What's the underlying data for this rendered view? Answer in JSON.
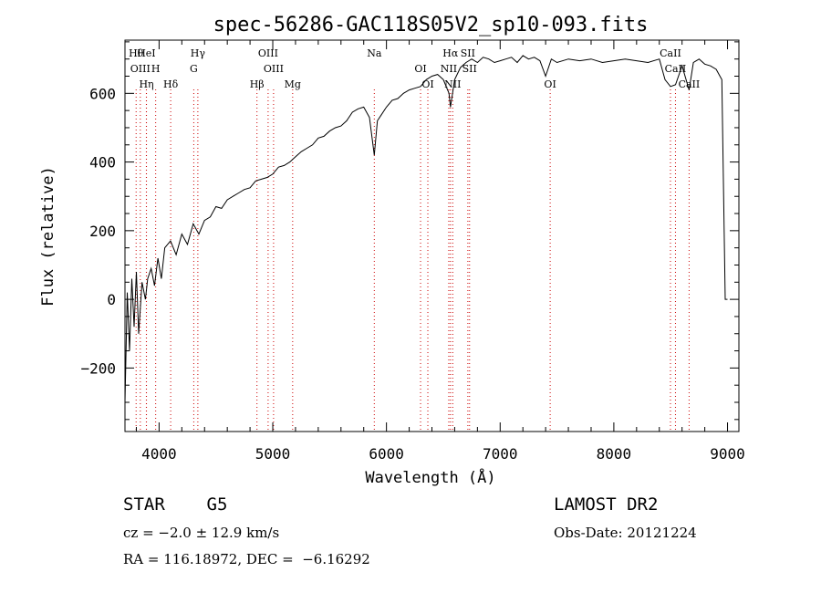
{
  "chart_data": {
    "type": "line",
    "title": "spec-56286-GAC118S05V2_sp10-093.fits",
    "xlabel": "Wavelength (Å)",
    "ylabel": "Flux (relative)",
    "xlim": [
      3700,
      9100
    ],
    "ylim": [
      -385,
      755
    ],
    "x_ticks": [
      4000,
      5000,
      6000,
      7000,
      8000,
      9000
    ],
    "y_ticks": [
      -200,
      0,
      200,
      400,
      600
    ],
    "x_tick_labels": [
      "4000",
      "5000",
      "6000",
      "7000",
      "8000",
      "9000"
    ],
    "y_tick_labels": [
      "−200",
      "0",
      "200",
      "400",
      "600"
    ],
    "grid": false,
    "series": [
      {
        "color": "#000000",
        "x": [
          3700,
          3720,
          3740,
          3760,
          3780,
          3800,
          3820,
          3850,
          3880,
          3900,
          3930,
          3960,
          3990,
          4020,
          4050,
          4100,
          4150,
          4200,
          4250,
          4300,
          4350,
          4400,
          4450,
          4500,
          4550,
          4600,
          4650,
          4700,
          4750,
          4800,
          4850,
          4900,
          4950,
          5000,
          5050,
          5100,
          5150,
          5200,
          5250,
          5300,
          5350,
          5400,
          5450,
          5500,
          5550,
          5600,
          5650,
          5700,
          5750,
          5800,
          5850,
          5893,
          5920,
          5950,
          6000,
          6050,
          6100,
          6150,
          6200,
          6250,
          6300,
          6350,
          6400,
          6450,
          6500,
          6550,
          6563,
          6600,
          6650,
          6700,
          6750,
          6800,
          6850,
          6900,
          6950,
          7000,
          7050,
          7100,
          7150,
          7200,
          7250,
          7300,
          7350,
          7400,
          7450,
          7500,
          7600,
          7700,
          7800,
          7900,
          8000,
          8100,
          8200,
          8300,
          8400,
          8450,
          8498,
          8542,
          8600,
          8662,
          8700,
          8750,
          8800,
          8850,
          8900,
          8950,
          8980,
          9000
        ],
        "y": [
          -300,
          20,
          -150,
          60,
          -80,
          80,
          -100,
          50,
          0,
          60,
          90,
          40,
          120,
          60,
          150,
          170,
          130,
          190,
          160,
          220,
          190,
          230,
          240,
          270,
          265,
          290,
          300,
          310,
          320,
          325,
          345,
          350,
          355,
          365,
          385,
          390,
          400,
          415,
          430,
          440,
          450,
          470,
          475,
          490,
          500,
          505,
          520,
          545,
          555,
          560,
          530,
          420,
          520,
          535,
          560,
          580,
          585,
          600,
          610,
          615,
          620,
          640,
          650,
          655,
          640,
          600,
          560,
          640,
          675,
          690,
          700,
          690,
          705,
          700,
          690,
          695,
          700,
          705,
          690,
          710,
          700,
          705,
          695,
          650,
          700,
          690,
          700,
          695,
          700,
          690,
          695,
          700,
          695,
          690,
          700,
          640,
          620,
          625,
          680,
          610,
          690,
          700,
          685,
          680,
          670,
          640,
          0,
          0
        ]
      }
    ],
    "line_annotations": [
      {
        "label": "Hθ",
        "x": 3798
      },
      {
        "label": "OIII",
        "x": 3835
      },
      {
        "label": "Hη",
        "x": 3889
      },
      {
        "label": "HeI",
        "x": 3888
      },
      {
        "label": "H",
        "x": 3970
      },
      {
        "label": "Hδ",
        "x": 4102
      },
      {
        "label": "Hγ",
        "x": 4341
      },
      {
        "label": "G",
        "x": 4305
      },
      {
        "label": "Hβ",
        "x": 4861
      },
      {
        "label": "OIII",
        "x": 4959
      },
      {
        "label": "OIII",
        "x": 5007
      },
      {
        "label": "Mg",
        "x": 5175
      },
      {
        "label": "Na",
        "x": 5893
      },
      {
        "label": "OI",
        "x": 6300
      },
      {
        "label": "OI",
        "x": 6364
      },
      {
        "label": "Hα",
        "x": 6563
      },
      {
        "label": "NII",
        "x": 6548
      },
      {
        "label": "NII",
        "x": 6583
      },
      {
        "label": "SII",
        "x": 6716
      },
      {
        "label": "SII",
        "x": 6731
      },
      {
        "label": "OI",
        "x": 7440
      },
      {
        "label": "CaII",
        "x": 8498
      },
      {
        "label": "CaII",
        "x": 8542
      },
      {
        "label": "CaII",
        "x": 8662
      }
    ]
  },
  "footer": {
    "class_line": "STAR    G5",
    "survey": "LAMOST DR2",
    "cz": "cz = −2.0 ± 12.9 km/s",
    "obs_date": "Obs-Date: 20121224",
    "radec": "RA = 116.18972, DEC =  −6.16292"
  },
  "colors": {
    "spectrum": "#000000",
    "line_markers": "#cc0000",
    "axes": "#000000"
  }
}
